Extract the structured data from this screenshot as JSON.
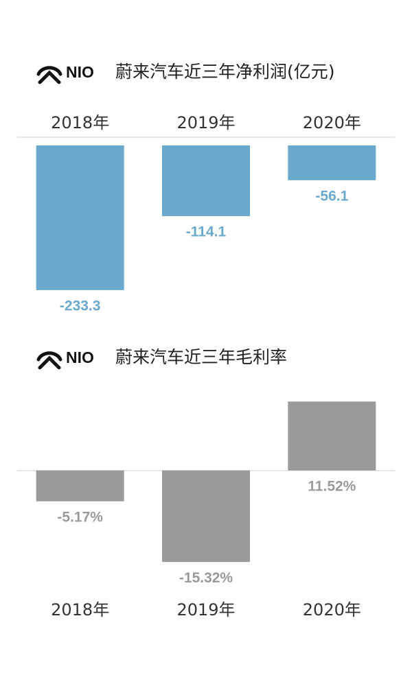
{
  "chart_data": [
    {
      "type": "bar",
      "brand": "NIO",
      "title": "蔚来汽车近三年净利润(亿元)",
      "categories": [
        "2018年",
        "2019年",
        "2020年"
      ],
      "values": [
        -233.3,
        -114.1,
        -56.1
      ],
      "color": "#6aa8cc",
      "ylim": [
        -250,
        0
      ]
    },
    {
      "type": "bar",
      "brand": "NIO",
      "title": "蔚来汽车近三年毛利率",
      "categories": [
        "2018年",
        "2019年",
        "2020年"
      ],
      "values": [
        -5.17,
        -15.32,
        11.52
      ],
      "value_labels": [
        "-5.17%",
        "-15.32%",
        "11.52%"
      ],
      "color": "#9a9a9a",
      "ylim": [
        -20,
        15
      ]
    }
  ]
}
